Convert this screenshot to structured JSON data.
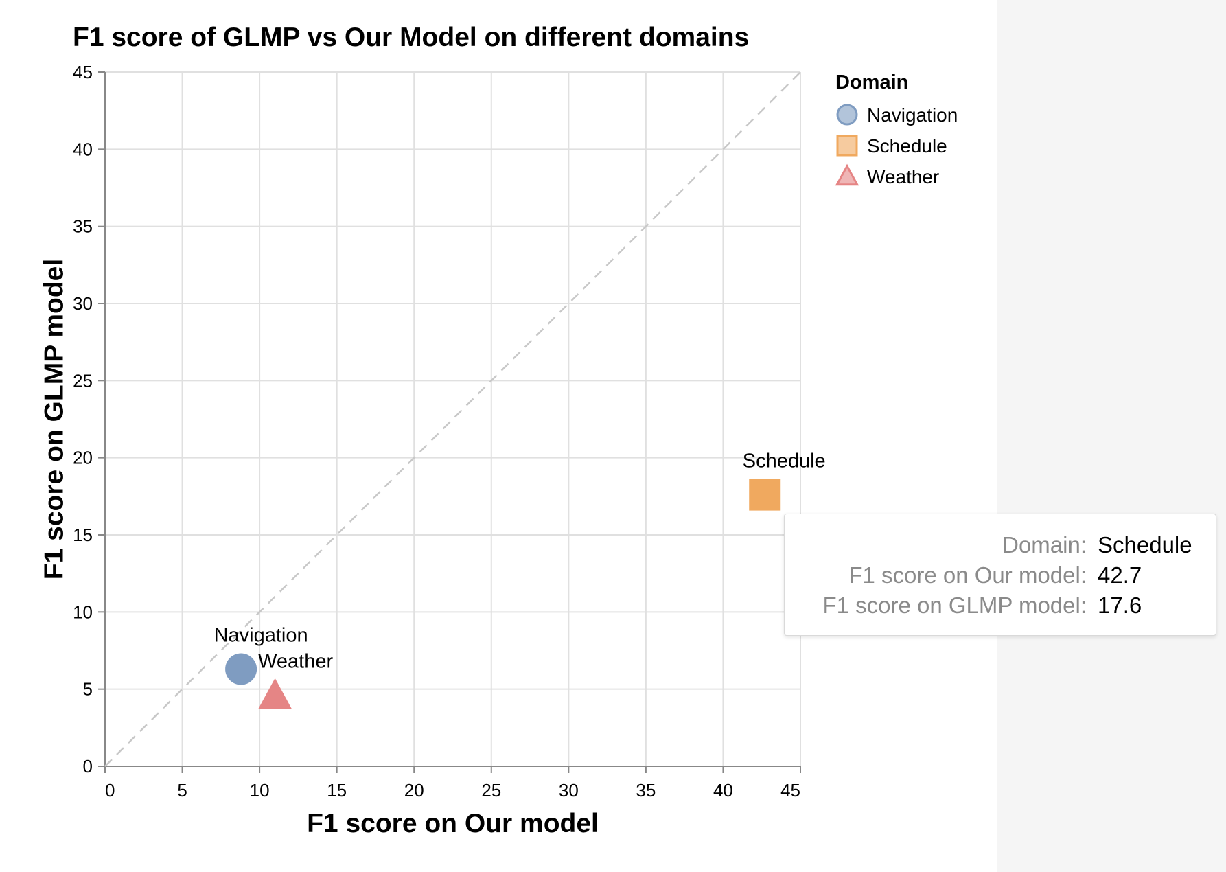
{
  "chart_data": {
    "type": "scatter",
    "title": "F1 score of GLMP vs Our Model on different domains",
    "xlabel": "F1 score on Our model",
    "ylabel": "F1 score on GLMP model",
    "xlim": [
      0,
      45
    ],
    "ylim": [
      0,
      45
    ],
    "x_ticks": [
      "0",
      "5",
      "10",
      "15",
      "20",
      "25",
      "30",
      "35",
      "40",
      "45"
    ],
    "y_ticks": [
      "0",
      "5",
      "10",
      "15",
      "20",
      "25",
      "30",
      "35",
      "40",
      "45"
    ],
    "grid": true,
    "reference_line": "y = x (dashed)",
    "legend": {
      "title": "Domain",
      "placement": "top-right",
      "entries": [
        {
          "name": "Navigation",
          "shape": "circle",
          "color": "#7f9cc1"
        },
        {
          "name": "Schedule",
          "shape": "square",
          "color": "#f0a95f"
        },
        {
          "name": "Weather",
          "shape": "triangle",
          "color": "#e58585"
        }
      ]
    },
    "points": [
      {
        "domain": "Navigation",
        "x": 8.8,
        "y": 6.3,
        "label": "Navigation",
        "shape": "circle",
        "color": "#7f9cc1"
      },
      {
        "domain": "Schedule",
        "x": 42.7,
        "y": 17.6,
        "label": "Schedule",
        "shape": "square",
        "color": "#f0a95f"
      },
      {
        "domain": "Weather",
        "x": 11.0,
        "y": 4.6,
        "label": "Weather",
        "shape": "triangle",
        "color": "#e58585"
      }
    ]
  },
  "tooltip": {
    "rows": [
      {
        "key": "Domain:",
        "value": "Schedule"
      },
      {
        "key": "F1 score on Our model:",
        "value": "42.7"
      },
      {
        "key": "F1 score on GLMP model:",
        "value": "17.6"
      }
    ]
  }
}
